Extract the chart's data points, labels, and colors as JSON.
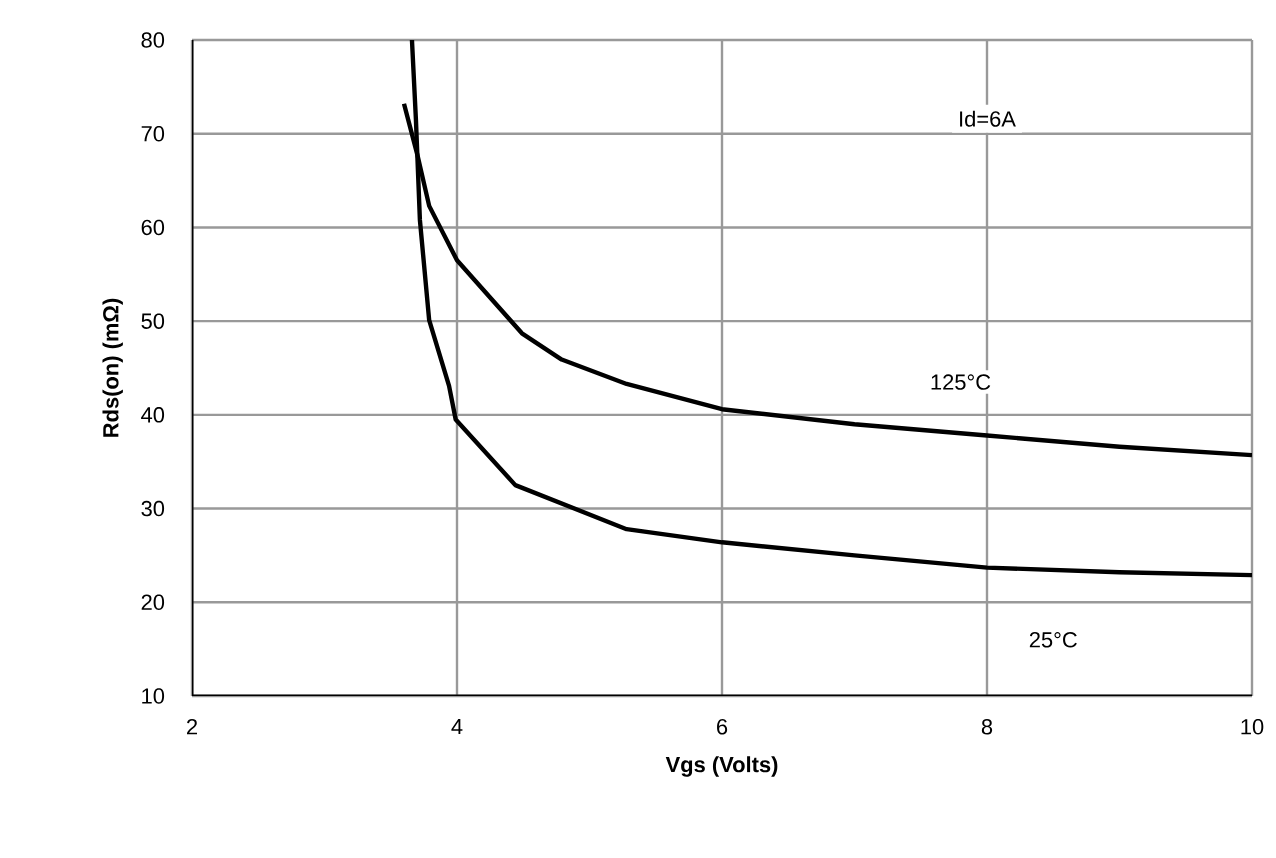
{
  "chart_data": {
    "type": "line",
    "xlabel": "Vgs (Volts)",
    "ylabel": "Rds(on) (mΩ)",
    "xlim": [
      2,
      10
    ],
    "ylim": [
      10,
      80
    ],
    "xticks": [
      2,
      4,
      6,
      8,
      10
    ],
    "yticks": [
      10,
      20,
      30,
      40,
      50,
      60,
      70,
      80
    ],
    "grid": true,
    "marker": "none",
    "line_style": "solid",
    "series": [
      {
        "color": "#000000",
        "x": [
          3.6,
          3.7,
          3.79,
          4.0,
          4.49,
          4.79,
          5.28,
          6.0,
          7.0,
          8.0,
          9.0,
          10.0
        ],
        "values": [
          73.2,
          67.8,
          62.3,
          56.5,
          48.7,
          45.9,
          43.3,
          40.6,
          39.0,
          37.8,
          36.6,
          35.7
        ]
      },
      {
        "color": "#000000",
        "x": [
          3.66,
          3.69,
          3.72,
          3.79,
          3.94,
          3.99,
          4.44,
          5.28,
          6.0,
          7.0,
          8.0,
          9.0,
          10.0
        ],
        "values": [
          80,
          71.5,
          60.8,
          50.1,
          43.1,
          39.5,
          32.5,
          27.8,
          26.4,
          25.0,
          23.7,
          23.2,
          22.9
        ]
      }
    ],
    "annotations": [
      "Id=6A",
      {
        "text": "125°C",
        "x": 7.8,
        "y": 43.5
      },
      {
        "text": "25°C",
        "x": 8.5,
        "y": 16
      }
    ]
  }
}
